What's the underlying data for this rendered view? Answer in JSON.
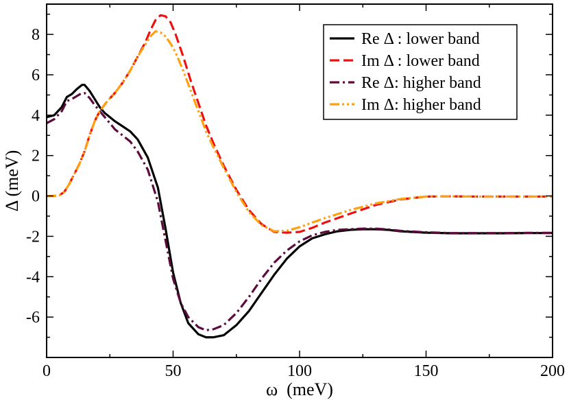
{
  "chart_data": {
    "type": "line",
    "xlabel": "ω  (meV)",
    "ylabel": "Δ (meV)",
    "xlim": [
      0,
      200
    ],
    "ylim": [
      -8,
      9.5
    ],
    "xticks": [
      0,
      50,
      100,
      150,
      200
    ],
    "xtick_labels": [
      "0",
      "50",
      "100",
      "150",
      "200"
    ],
    "yticks": [
      -6,
      -4,
      -2,
      0,
      2,
      4,
      6,
      8
    ],
    "ytick_labels": [
      "-6",
      "-4",
      "-2",
      "0",
      "2",
      "4",
      "6",
      "8"
    ],
    "grid": false,
    "legend_position": "top-right",
    "series": [
      {
        "name": "Re Δ : lower band",
        "color": "#000000",
        "dash": "solid",
        "x": [
          0,
          3,
          6,
          8,
          10,
          12,
          14,
          15,
          17,
          19,
          21,
          23,
          25,
          27,
          30,
          33,
          36,
          40,
          44,
          47,
          50,
          53,
          56,
          60,
          63,
          66,
          70,
          75,
          80,
          85,
          90,
          95,
          100,
          105,
          110,
          115,
          120,
          125,
          130,
          135,
          140,
          150,
          160,
          170,
          180,
          190,
          200
        ],
        "y": [
          3.9,
          4.0,
          4.4,
          4.9,
          5.05,
          5.3,
          5.5,
          5.5,
          5.2,
          4.8,
          4.4,
          4.1,
          3.9,
          3.7,
          3.45,
          3.2,
          2.8,
          1.9,
          0.4,
          -1.6,
          -3.8,
          -5.3,
          -6.3,
          -6.85,
          -7.0,
          -7.0,
          -6.9,
          -6.4,
          -5.7,
          -4.8,
          -3.9,
          -3.1,
          -2.5,
          -2.1,
          -1.9,
          -1.75,
          -1.68,
          -1.65,
          -1.65,
          -1.68,
          -1.75,
          -1.82,
          -1.85,
          -1.85,
          -1.85,
          -1.84,
          -1.84
        ]
      },
      {
        "name": "Im Δ : lower band",
        "color": "#ee1111",
        "dash": "dash",
        "x": [
          0,
          3,
          5,
          7,
          9,
          11,
          13,
          15,
          17,
          19,
          21,
          24,
          27,
          30,
          33,
          36,
          39,
          41,
          43,
          45,
          47,
          49,
          51,
          54,
          57,
          60,
          63,
          66,
          70,
          75,
          80,
          85,
          90,
          95,
          100,
          105,
          110,
          120,
          130,
          140,
          150,
          160,
          170,
          180,
          190,
          200
        ],
        "y": [
          0.0,
          0.0,
          0.03,
          0.2,
          0.6,
          1.1,
          1.6,
          2.2,
          3.0,
          3.7,
          4.2,
          4.7,
          5.1,
          5.6,
          6.2,
          6.9,
          7.6,
          8.2,
          8.7,
          8.95,
          8.9,
          8.6,
          8.0,
          6.9,
          5.7,
          4.6,
          3.5,
          2.6,
          1.5,
          0.3,
          -0.7,
          -1.4,
          -1.78,
          -1.82,
          -1.78,
          -1.58,
          -1.32,
          -0.88,
          -0.45,
          -0.17,
          -0.03,
          -0.02,
          -0.03,
          -0.03,
          -0.03,
          -0.03
        ]
      },
      {
        "name": "Re Δ: higher band",
        "color": "#5c0c3c",
        "dash": "dashdot",
        "x": [
          0,
          3,
          6,
          8,
          10,
          12,
          14,
          15,
          17,
          19,
          21,
          23,
          25,
          27,
          30,
          33,
          36,
          40,
          44,
          47,
          50,
          53,
          56,
          60,
          63,
          66,
          70,
          75,
          80,
          85,
          90,
          95,
          100,
          105,
          110,
          115,
          120,
          125,
          130,
          135,
          140,
          150,
          160,
          170,
          180,
          190,
          200
        ],
        "y": [
          3.6,
          3.8,
          4.2,
          4.7,
          4.8,
          4.95,
          5.1,
          5.1,
          4.85,
          4.5,
          4.2,
          3.9,
          3.6,
          3.3,
          3.0,
          2.7,
          2.2,
          1.3,
          -0.3,
          -2.2,
          -4.1,
          -5.3,
          -6.0,
          -6.5,
          -6.65,
          -6.6,
          -6.4,
          -5.8,
          -5.0,
          -4.1,
          -3.3,
          -2.7,
          -2.25,
          -1.95,
          -1.78,
          -1.68,
          -1.65,
          -1.62,
          -1.62,
          -1.66,
          -1.73,
          -1.8,
          -1.84,
          -1.84,
          -1.84,
          -1.83,
          -1.83
        ]
      },
      {
        "name": "Im Δ: higher band",
        "color": "#ffa010",
        "dash": "dashdotdot",
        "x": [
          0,
          3,
          5,
          7,
          9,
          11,
          13,
          15,
          17,
          19,
          21,
          24,
          27,
          30,
          33,
          36,
          39,
          41,
          43,
          45,
          47,
          49,
          51,
          54,
          57,
          60,
          63,
          66,
          70,
          75,
          80,
          85,
          90,
          95,
          100,
          105,
          110,
          120,
          130,
          140,
          150,
          160,
          170,
          180,
          190,
          200
        ],
        "y": [
          0.0,
          0.0,
          0.03,
          0.2,
          0.6,
          1.1,
          1.6,
          2.2,
          3.0,
          3.7,
          4.2,
          4.7,
          5.1,
          5.6,
          6.2,
          6.9,
          7.5,
          7.9,
          8.15,
          8.1,
          7.9,
          7.55,
          7.1,
          6.2,
          5.2,
          4.2,
          3.2,
          2.4,
          1.4,
          0.2,
          -0.8,
          -1.45,
          -1.75,
          -1.72,
          -1.55,
          -1.32,
          -1.1,
          -0.7,
          -0.37,
          -0.15,
          -0.03,
          -0.02,
          -0.03,
          -0.03,
          -0.03,
          -0.03
        ]
      }
    ]
  }
}
